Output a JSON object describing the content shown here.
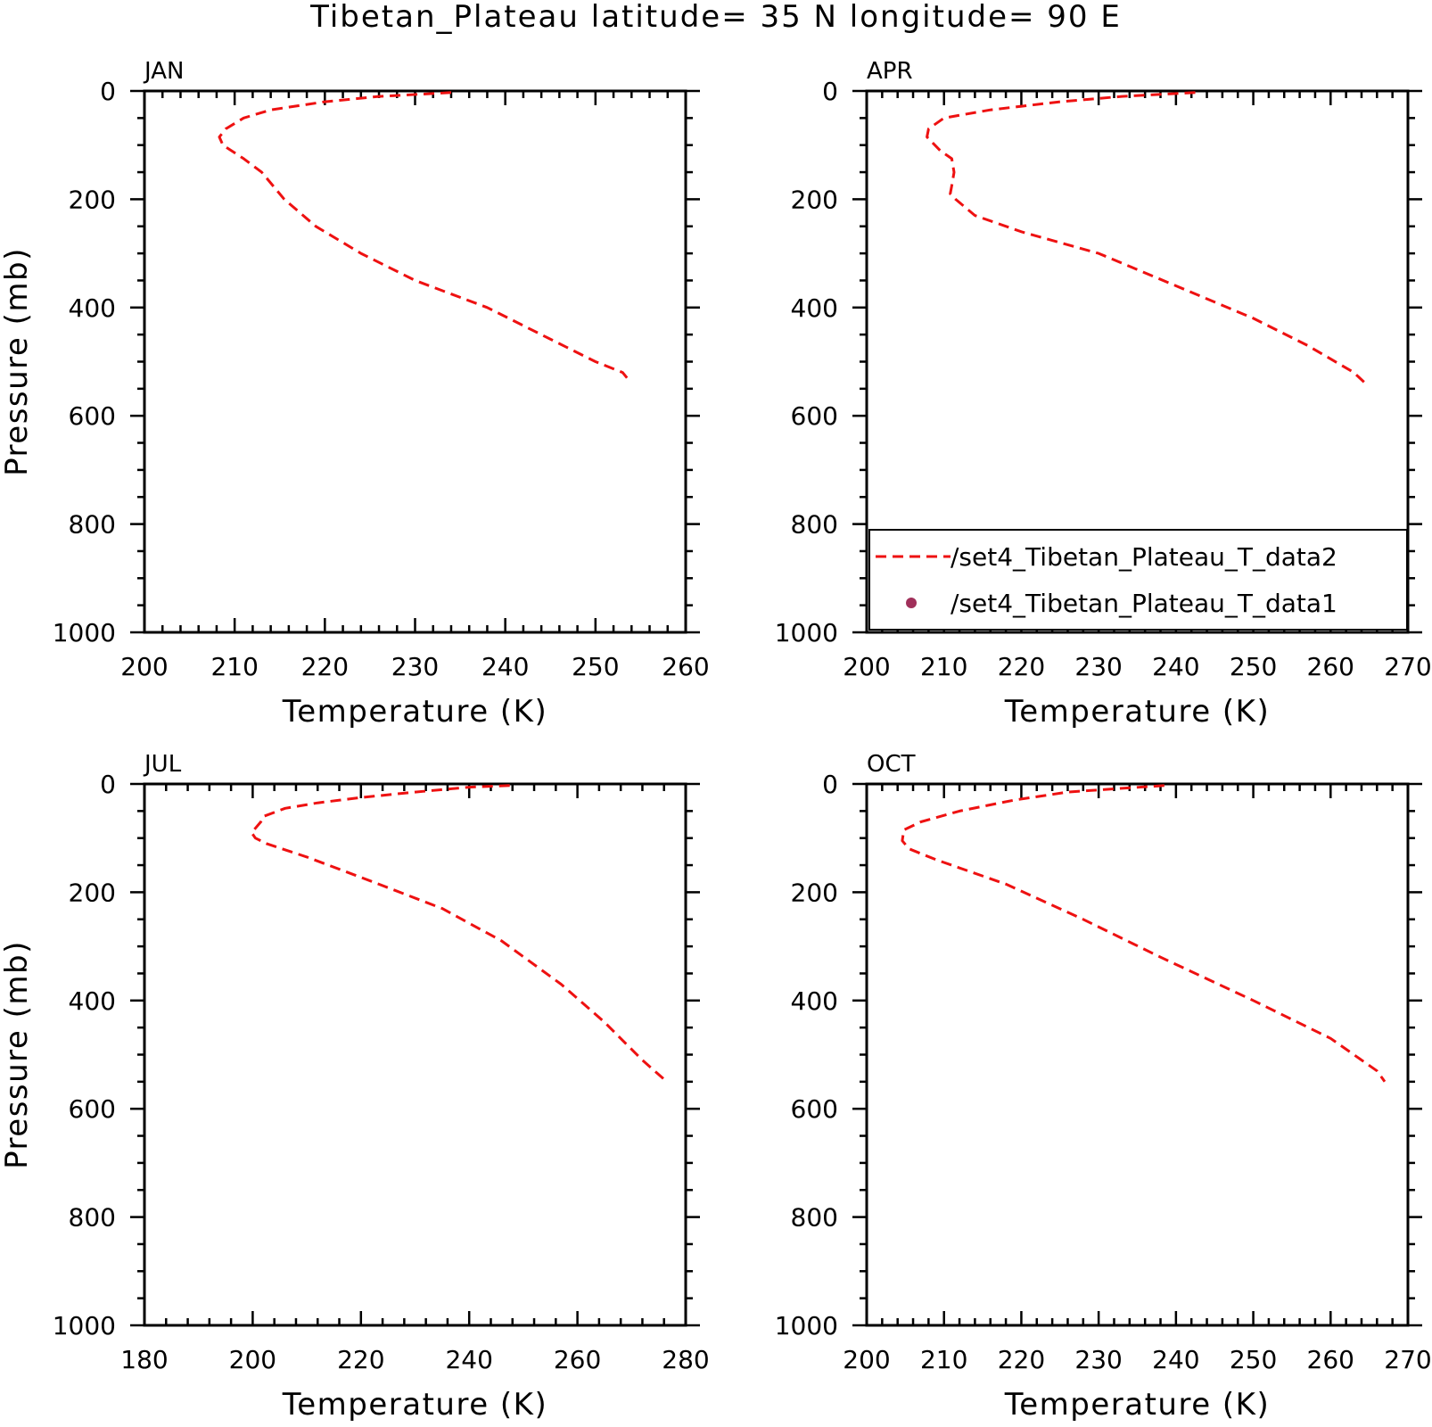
{
  "figure": {
    "title": "Tibetan_Plateau  latitude= 35 N longitude= 90 E"
  },
  "legend": {
    "entries": [
      {
        "label": "/set4_Tibetan_Plateau_T_data2",
        "style": "dashed-line",
        "color": "#ee1111"
      },
      {
        "label": "/set4_Tibetan_Plateau_T_data1",
        "style": "dot",
        "color": "#a0305a"
      }
    ]
  },
  "chart_data": [
    {
      "type": "line",
      "panel_label": "JAN",
      "xlabel": "Temperature (K)",
      "ylabel": "Pressure (mb)",
      "xlim": [
        200,
        260
      ],
      "ylim": [
        1000,
        0
      ],
      "y_inverted": true,
      "xticks": [
        200,
        210,
        220,
        230,
        240,
        250,
        260
      ],
      "yticks": [
        0,
        200,
        400,
        600,
        800,
        1000
      ],
      "series": [
        {
          "color": "#ee1111",
          "dashed": true,
          "x": [
            234.0,
            226.0,
            220.0,
            214.0,
            211.0,
            209.0,
            208.3,
            208.7,
            211.0,
            213.0,
            215.5,
            219.0,
            224.0,
            230.0,
            238.0,
            244.0,
            250.0,
            253.0,
            253.5
          ],
          "y": [
            3,
            10,
            20,
            35,
            50,
            70,
            85,
            100,
            125,
            150,
            200,
            250,
            300,
            350,
            400,
            450,
            500,
            520,
            530
          ]
        }
      ]
    },
    {
      "type": "line",
      "panel_label": "APR",
      "xlabel": "Temperature (K)",
      "ylabel": "",
      "xlim": [
        200,
        270
      ],
      "ylim": [
        1000,
        0
      ],
      "y_inverted": true,
      "xticks": [
        200,
        210,
        220,
        230,
        240,
        250,
        260,
        270
      ],
      "yticks": [
        0,
        200,
        400,
        600,
        800,
        1000
      ],
      "series": [
        {
          "color": "#ee1111",
          "dashed": true,
          "x": [
            242.5,
            233.0,
            225.0,
            216.0,
            210.0,
            208.0,
            207.8,
            209.5,
            211.0,
            211.3,
            211.0,
            210.8,
            211.5,
            214.0,
            220.0,
            230.0,
            240.0,
            250.0,
            257.0,
            263.0,
            264.5
          ],
          "y": [
            3,
            10,
            20,
            35,
            50,
            70,
            85,
            110,
            125,
            150,
            175,
            190,
            200,
            230,
            260,
            300,
            360,
            420,
            470,
            520,
            540
          ]
        }
      ]
    },
    {
      "type": "line",
      "panel_label": "JUL",
      "xlabel": "Temperature (K)",
      "ylabel": "Pressure (mb)",
      "xlim": [
        180,
        280
      ],
      "ylim": [
        1000,
        0
      ],
      "y_inverted": true,
      "xticks": [
        180,
        200,
        220,
        240,
        260,
        280
      ],
      "yticks": [
        0,
        200,
        400,
        600,
        800,
        1000
      ],
      "series": [
        {
          "color": "#ee1111",
          "dashed": true,
          "x": [
            247.5,
            240.0,
            230.0,
            220.0,
            212.0,
            206.0,
            202.0,
            201.5,
            199.8,
            200.5,
            202.5,
            210.0,
            222.0,
            235.0,
            246.0,
            257.0,
            265.0,
            272.0,
            276.5
          ],
          "y": [
            3,
            6,
            15,
            25,
            35,
            45,
            60,
            70,
            90,
            100,
            110,
            135,
            180,
            230,
            290,
            370,
            440,
            510,
            550
          ]
        }
      ]
    },
    {
      "type": "line",
      "panel_label": "OCT",
      "xlabel": "Temperature (K)",
      "ylabel": "",
      "xlim": [
        200,
        270
      ],
      "ylim": [
        1000,
        0
      ],
      "y_inverted": true,
      "xticks": [
        200,
        210,
        220,
        230,
        240,
        250,
        260,
        270
      ],
      "yticks": [
        0,
        200,
        400,
        600,
        800,
        1000
      ],
      "series": [
        {
          "color": "#ee1111",
          "dashed": true,
          "x": [
            238.5,
            233.0,
            226.0,
            219.0,
            212.0,
            207.0,
            204.8,
            204.6,
            205.5,
            209.0,
            218.0,
            228.0,
            238.0,
            250.0,
            260.0,
            266.0,
            267.0
          ],
          "y": [
            3,
            8,
            15,
            30,
            50,
            70,
            85,
            105,
            120,
            140,
            185,
            250,
            320,
            400,
            470,
            530,
            550
          ]
        }
      ]
    }
  ]
}
